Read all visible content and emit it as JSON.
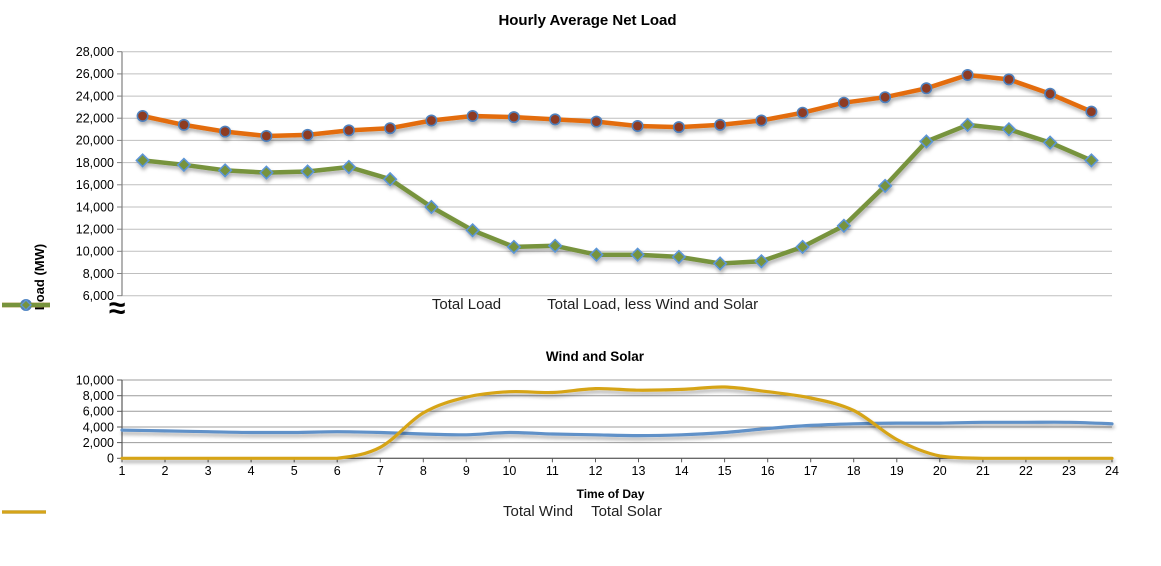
{
  "axis_break_symbol": "≈",
  "style": {
    "top_grid_color": "#BFBFBF",
    "top_axis_color": "#808080",
    "bottom_grid_color": "#9C9C9C",
    "bottom_axis_color": "#595959",
    "text_color": "#000000"
  },
  "chart_data": [
    {
      "type": "line",
      "title": "Hourly Average Net Load",
      "ylabel": "Load (MW)",
      "xlabel": "",
      "ylim": [
        6000,
        28000
      ],
      "ytick_step": 2000,
      "grid": true,
      "x_labels_visible": false,
      "legend_position": "bottom",
      "axis_break": true,
      "x": [
        1,
        2,
        3,
        4,
        5,
        6,
        7,
        8,
        9,
        10,
        11,
        12,
        13,
        14,
        15,
        16,
        17,
        18,
        19,
        20,
        21,
        22,
        23,
        24
      ],
      "series": [
        {
          "name": "Total Load",
          "color": "#E36C09",
          "marker": "circle",
          "marker_fill": "#8E3B24",
          "marker_stroke": "#4F81BD",
          "width": 4.5,
          "smooth": false,
          "values": [
            22200,
            21400,
            20800,
            20400,
            20500,
            20900,
            21100,
            21800,
            22200,
            22100,
            21900,
            21700,
            21300,
            21200,
            21400,
            21800,
            22500,
            23400,
            23900,
            24700,
            25900,
            25500,
            24200,
            22600
          ]
        },
        {
          "name": "Total Load, less Wind and Solar",
          "color": "#77933C",
          "marker": "diamond",
          "marker_fill": "#77933C",
          "marker_stroke": "#5C95D6",
          "width": 4.5,
          "smooth": false,
          "values": [
            18200,
            17800,
            17300,
            17100,
            17200,
            17600,
            16500,
            14000,
            11900,
            10400,
            10500,
            9700,
            9700,
            9500,
            8900,
            9100,
            10400,
            12300,
            15900,
            19900,
            21400,
            21000,
            19800,
            18200
          ]
        }
      ]
    },
    {
      "type": "line",
      "title": "Wind and Solar",
      "ylabel": "",
      "xlabel": "Time of Day",
      "ylim": [
        0,
        10000
      ],
      "ytick_step": 2000,
      "grid": true,
      "x_labels_visible": true,
      "legend_position": "bottom",
      "x": [
        1,
        2,
        3,
        4,
        5,
        6,
        7,
        8,
        9,
        10,
        11,
        12,
        13,
        14,
        15,
        16,
        17,
        18,
        19,
        20,
        21,
        22,
        23,
        24
      ],
      "series": [
        {
          "name": "Total Wind",
          "color": "#6191C8",
          "marker": "none",
          "width": 3.2,
          "smooth": true,
          "values": [
            3600,
            3500,
            3400,
            3300,
            3300,
            3400,
            3300,
            3100,
            3000,
            3300,
            3100,
            3000,
            2900,
            3000,
            3300,
            3800,
            4200,
            4400,
            4500,
            4500,
            4600,
            4600,
            4600,
            4400
          ]
        },
        {
          "name": "Total Solar",
          "color": "#D6A419",
          "marker": "none",
          "width": 3.2,
          "smooth": true,
          "values": [
            0,
            0,
            0,
            0,
            0,
            0,
            1400,
            5800,
            7800,
            8500,
            8400,
            8900,
            8700,
            8800,
            9100,
            8500,
            7700,
            6100,
            2400,
            300,
            0,
            0,
            0,
            0
          ]
        }
      ]
    }
  ]
}
